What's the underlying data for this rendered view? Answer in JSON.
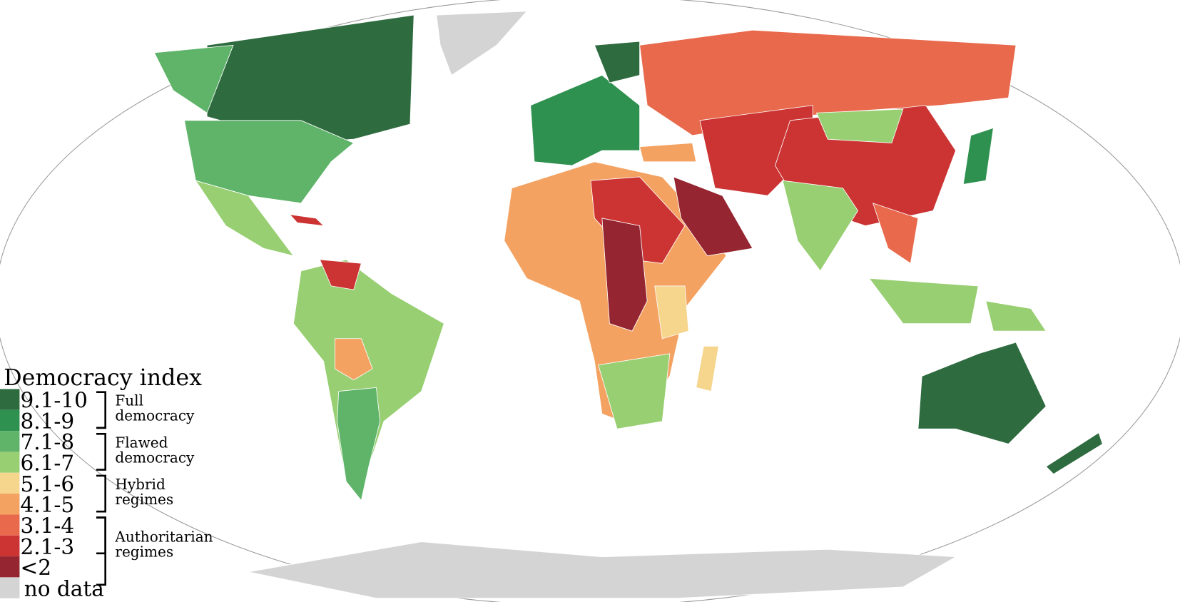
{
  "legend": {
    "title": "Democracy index",
    "items": [
      {
        "label": "9.1-10",
        "color": "#2e6b3f"
      },
      {
        "label": "8.1-9",
        "color": "#2e9150"
      },
      {
        "label": "7.1-8",
        "color": "#5fb46a"
      },
      {
        "label": "6.1-7",
        "color": "#98cf72"
      },
      {
        "label": "5.1-6",
        "color": "#f6d58c"
      },
      {
        "label": "4.1-5",
        "color": "#f4a261"
      },
      {
        "label": "3.1-4",
        "color": "#e8694b"
      },
      {
        "label": "2.1-3",
        "color": "#cc3434"
      },
      {
        "label": "<2",
        "color": "#952530"
      },
      {
        "label": "no data",
        "color": "#d4d4d4"
      }
    ],
    "groups": [
      {
        "lines": [
          "Full",
          "democracy"
        ]
      },
      {
        "lines": [
          "Flawed",
          "democracy"
        ]
      },
      {
        "lines": [
          "Hybrid",
          "regimes"
        ]
      },
      {
        "lines": [
          "Authoritarian",
          "regimes"
        ]
      }
    ]
  }
}
